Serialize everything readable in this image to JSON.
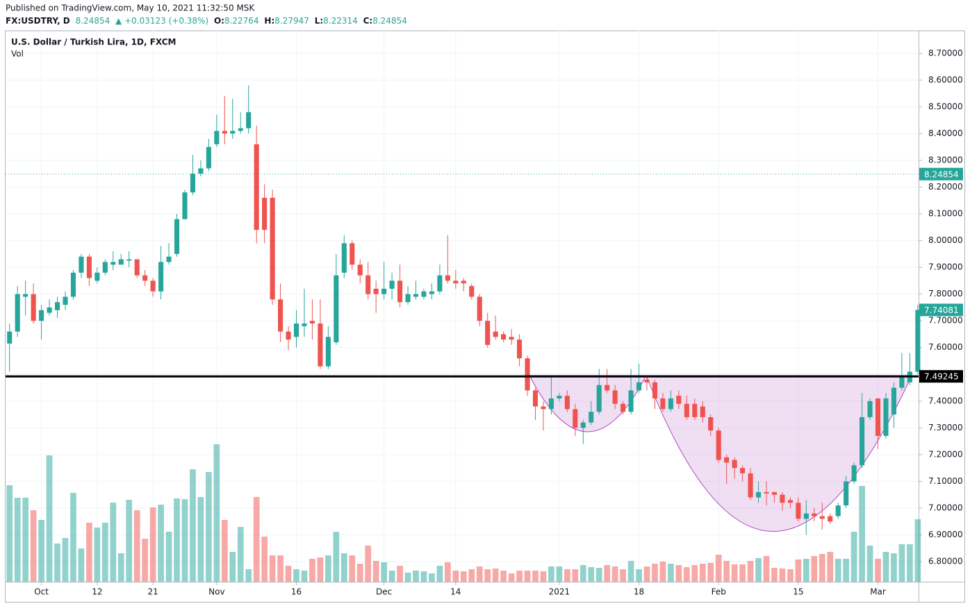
{
  "header": {
    "published": "Published on TradingView.com, May 10, 2021 11:32:50 MSK",
    "symbol": "FX:USDTRY, D",
    "price": "8.24854",
    "change": "▲ +0.03123 (+0.38%)",
    "ohlc": [
      {
        "key": "O:",
        "value": "8.22764"
      },
      {
        "key": "H:",
        "value": "8.27947"
      },
      {
        "key": "L:",
        "value": "8.22314"
      },
      {
        "key": "C:",
        "value": "8.24854"
      }
    ]
  },
  "chart_data": {
    "type": "candlestick",
    "title": "U.S. Dollar / Turkish Lira, 1D, FXCM",
    "volume_title": "Vol",
    "up_color": "#26a69a",
    "down_color": "#ef5350",
    "open": [
      7.615,
      7.66,
      7.79,
      7.8,
      7.7,
      7.73,
      7.74,
      7.76,
      7.79,
      7.88,
      7.94,
      7.85,
      7.88,
      7.91,
      7.91,
      7.925,
      7.93,
      7.87,
      7.85,
      7.81,
      7.92,
      7.95,
      8.08,
      8.18,
      8.25,
      8.27,
      8.36,
      8.41,
      8.4,
      8.41,
      8.42,
      8.36,
      8.16,
      8.16,
      7.78,
      7.66,
      7.64,
      7.68,
      7.7,
      7.69,
      7.53,
      7.62,
      7.88,
      7.99,
      7.91,
      7.87,
      7.82,
      7.8,
      7.82,
      7.85,
      7.77,
      7.79,
      7.79,
      7.8,
      7.81,
      7.87,
      7.85,
      7.85,
      7.83,
      7.79,
      7.7,
      7.66,
      7.65,
      7.64,
      7.63,
      7.56,
      7.44,
      7.38,
      7.37,
      7.41,
      7.42,
      7.37,
      7.3,
      7.32,
      7.36,
      7.46,
      7.44,
      7.39,
      7.36,
      7.44,
      7.48,
      7.47,
      7.41,
      7.37,
      7.42,
      7.39,
      7.39,
      7.38,
      7.34,
      7.29,
      7.19,
      7.18,
      7.15,
      7.13,
      7.04,
      7.06,
      7.06,
      7.05,
      7.03,
      7.02,
      6.96,
      6.98,
      6.97,
      6.97,
      6.97,
      7.01,
      7.1,
      7.16,
      7.34,
      7.41,
      7.27,
      7.35,
      7.45,
      7.47,
      7.51
    ],
    "high": [
      7.69,
      7.83,
      7.85,
      7.84,
      7.76,
      7.78,
      7.79,
      7.81,
      7.89,
      7.95,
      7.95,
      7.9,
      7.93,
      7.96,
      7.95,
      7.96,
      7.93,
      7.89,
      7.86,
      7.98,
      7.99,
      8.1,
      8.19,
      8.32,
      8.3,
      8.38,
      8.47,
      8.54,
      8.53,
      8.48,
      8.58,
      8.43,
      8.21,
      8.19,
      7.84,
      7.68,
      7.74,
      7.82,
      7.78,
      7.78,
      7.68,
      7.95,
      8.02,
      8.0,
      7.93,
      7.92,
      7.85,
      7.92,
      7.88,
      7.91,
      7.83,
      7.85,
      7.82,
      7.84,
      7.91,
      8.02,
      7.89,
      7.86,
      7.84,
      7.8,
      7.73,
      7.72,
      7.66,
      7.67,
      7.65,
      7.57,
      7.45,
      7.4,
      7.49,
      7.43,
      7.44,
      7.39,
      7.33,
      7.4,
      7.52,
      7.52,
      7.46,
      7.4,
      7.52,
      7.54,
      7.49,
      7.48,
      7.43,
      7.44,
      7.44,
      7.42,
      7.41,
      7.4,
      7.35,
      7.3,
      7.2,
      7.19,
      7.16,
      7.15,
      7.1,
      7.1,
      7.06,
      7.06,
      7.04,
      7.04,
      7.03,
      7.0,
      7.02,
      6.98,
      7.02,
      7.12,
      7.17,
      7.43,
      7.41,
      7.41,
      7.43,
      7.47,
      7.58,
      7.58,
      7.76
    ],
    "low": [
      7.51,
      7.64,
      7.72,
      7.69,
      7.63,
      7.72,
      7.71,
      7.74,
      7.78,
      7.86,
      7.83,
      7.84,
      7.87,
      7.89,
      7.91,
      7.9,
      7.86,
      7.83,
      7.79,
      7.78,
      7.91,
      7.94,
      8.08,
      8.17,
      8.24,
      8.26,
      8.35,
      8.36,
      8.38,
      8.4,
      8.4,
      7.99,
      7.99,
      7.76,
      7.62,
      7.59,
      7.6,
      7.64,
      7.63,
      7.52,
      7.52,
      7.61,
      7.86,
      7.89,
      7.84,
      7.78,
      7.73,
      7.78,
      7.78,
      7.75,
      7.76,
      7.78,
      7.78,
      7.78,
      7.8,
      7.84,
      7.82,
      7.81,
      7.78,
      7.68,
      7.6,
      7.63,
      7.62,
      7.61,
      7.53,
      7.42,
      7.33,
      7.29,
      7.35,
      7.4,
      7.36,
      7.27,
      7.24,
      7.31,
      7.35,
      7.43,
      7.37,
      7.35,
      7.35,
      7.43,
      7.44,
      7.37,
      7.36,
      7.36,
      7.37,
      7.33,
      7.33,
      7.32,
      7.27,
      7.17,
      7.09,
      7.11,
      7.1,
      7.03,
      7.02,
      7.01,
      7.02,
      6.99,
      7.0,
      6.95,
      6.9,
      6.95,
      6.92,
      6.94,
      6.96,
      7.0,
      7.09,
      7.15,
      7.33,
      7.22,
      7.26,
      7.3,
      7.44,
      7.46,
      7.5
    ],
    "close": [
      7.66,
      7.8,
      7.8,
      7.7,
      7.74,
      7.75,
      7.77,
      7.79,
      7.88,
      7.94,
      7.86,
      7.88,
      7.92,
      7.92,
      7.93,
      7.93,
      7.87,
      7.85,
      7.81,
      7.92,
      7.94,
      8.08,
      8.18,
      8.25,
      8.27,
      8.35,
      8.41,
      8.4,
      8.41,
      8.42,
      8.48,
      8.04,
      8.04,
      7.78,
      7.66,
      7.63,
      7.69,
      7.69,
      7.69,
      7.53,
      7.64,
      7.87,
      7.99,
      7.91,
      7.87,
      7.8,
      7.8,
      7.82,
      7.85,
      7.77,
      7.8,
      7.8,
      7.81,
      7.81,
      7.87,
      7.85,
      7.84,
      7.84,
      7.79,
      7.7,
      7.61,
      7.64,
      7.63,
      7.63,
      7.56,
      7.44,
      7.38,
      7.37,
      7.41,
      7.42,
      7.37,
      7.3,
      7.32,
      7.36,
      7.46,
      7.44,
      7.39,
      7.36,
      7.44,
      7.47,
      7.47,
      7.41,
      7.37,
      7.41,
      7.39,
      7.34,
      7.34,
      7.34,
      7.29,
      7.18,
      7.17,
      7.15,
      7.13,
      7.04,
      7.06,
      7.055,
      7.05,
      7.02,
      7.02,
      6.96,
      6.98,
      6.97,
      6.96,
      6.95,
      7.01,
      7.1,
      7.16,
      7.34,
      7.4,
      7.27,
      7.41,
      7.45,
      7.49,
      7.51,
      7.74081
    ],
    "volume": [
      139,
      121,
      121,
      103,
      89,
      182,
      55,
      63,
      128,
      48,
      85,
      78,
      85,
      114,
      41,
      118,
      103,
      62,
      107,
      111,
      72,
      120,
      119,
      162,
      122,
      158,
      198,
      89,
      43,
      79,
      18,
      122,
      65,
      38,
      38,
      23,
      18,
      16,
      33,
      35,
      38,
      72,
      41,
      38,
      26,
      52,
      30,
      28,
      16,
      23,
      13,
      16,
      15,
      12,
      23,
      28,
      16,
      15,
      18,
      22,
      18,
      19,
      16,
      12,
      16,
      16,
      16,
      15,
      22,
      22,
      18,
      18,
      24,
      21,
      20,
      24,
      22,
      18,
      30,
      18,
      22,
      26,
      29,
      26,
      24,
      21,
      24,
      26,
      27,
      39,
      30,
      25,
      25,
      30,
      34,
      37,
      20,
      19,
      18,
      32,
      33,
      37,
      40,
      43,
      33,
      33,
      72,
      138,
      52,
      33,
      43,
      41,
      54,
      54,
      90
    ],
    "volume_lim": [
      0,
      250
    ],
    "xlim": [
      -0.5,
      114.1
    ],
    "xticks": [
      {
        "value": 4,
        "label": "Oct"
      },
      {
        "value": 11,
        "label": "12"
      },
      {
        "value": 18,
        "label": "21"
      },
      {
        "value": 26,
        "label": "Nov"
      },
      {
        "value": 36,
        "label": "16"
      },
      {
        "value": 47,
        "label": "Dec"
      },
      {
        "value": 56,
        "label": "14"
      },
      {
        "value": 69,
        "label": "2021"
      },
      {
        "value": 79,
        "label": "18"
      },
      {
        "value": 89,
        "label": "Feb"
      },
      {
        "value": 99,
        "label": "15"
      },
      {
        "value": 109,
        "label": "Mar"
      }
    ],
    "ylim": [
      6.725,
      8.785
    ],
    "yticks": [
      {
        "value": 6.8,
        "label": "6.80000"
      },
      {
        "value": 6.9,
        "label": "6.90000"
      },
      {
        "value": 7.0,
        "label": "7.00000"
      },
      {
        "value": 7.1,
        "label": "7.10000"
      },
      {
        "value": 7.2,
        "label": "7.20000"
      },
      {
        "value": 7.3,
        "label": "7.30000"
      },
      {
        "value": 7.4,
        "label": "7.40000"
      },
      {
        "value": 7.5,
        "label": "7.50000"
      },
      {
        "value": 7.6,
        "label": "7.60000"
      },
      {
        "value": 7.7,
        "label": "7.70000"
      },
      {
        "value": 7.8,
        "label": "7.80000"
      },
      {
        "value": 7.9,
        "label": "7.90000"
      },
      {
        "value": 8.0,
        "label": "8.00000"
      },
      {
        "value": 8.1,
        "label": "8.10000"
      },
      {
        "value": 8.2,
        "label": "8.20000"
      },
      {
        "value": 8.3,
        "label": "8.30000"
      },
      {
        "value": 8.4,
        "label": "8.40000"
      },
      {
        "value": 8.5,
        "label": "8.50000"
      },
      {
        "value": 8.6,
        "label": "8.60000"
      },
      {
        "value": 8.7,
        "label": "8.70000"
      }
    ],
    "grid": true,
    "current_price": 8.24854,
    "horizontal_line": 7.49245
  }
}
